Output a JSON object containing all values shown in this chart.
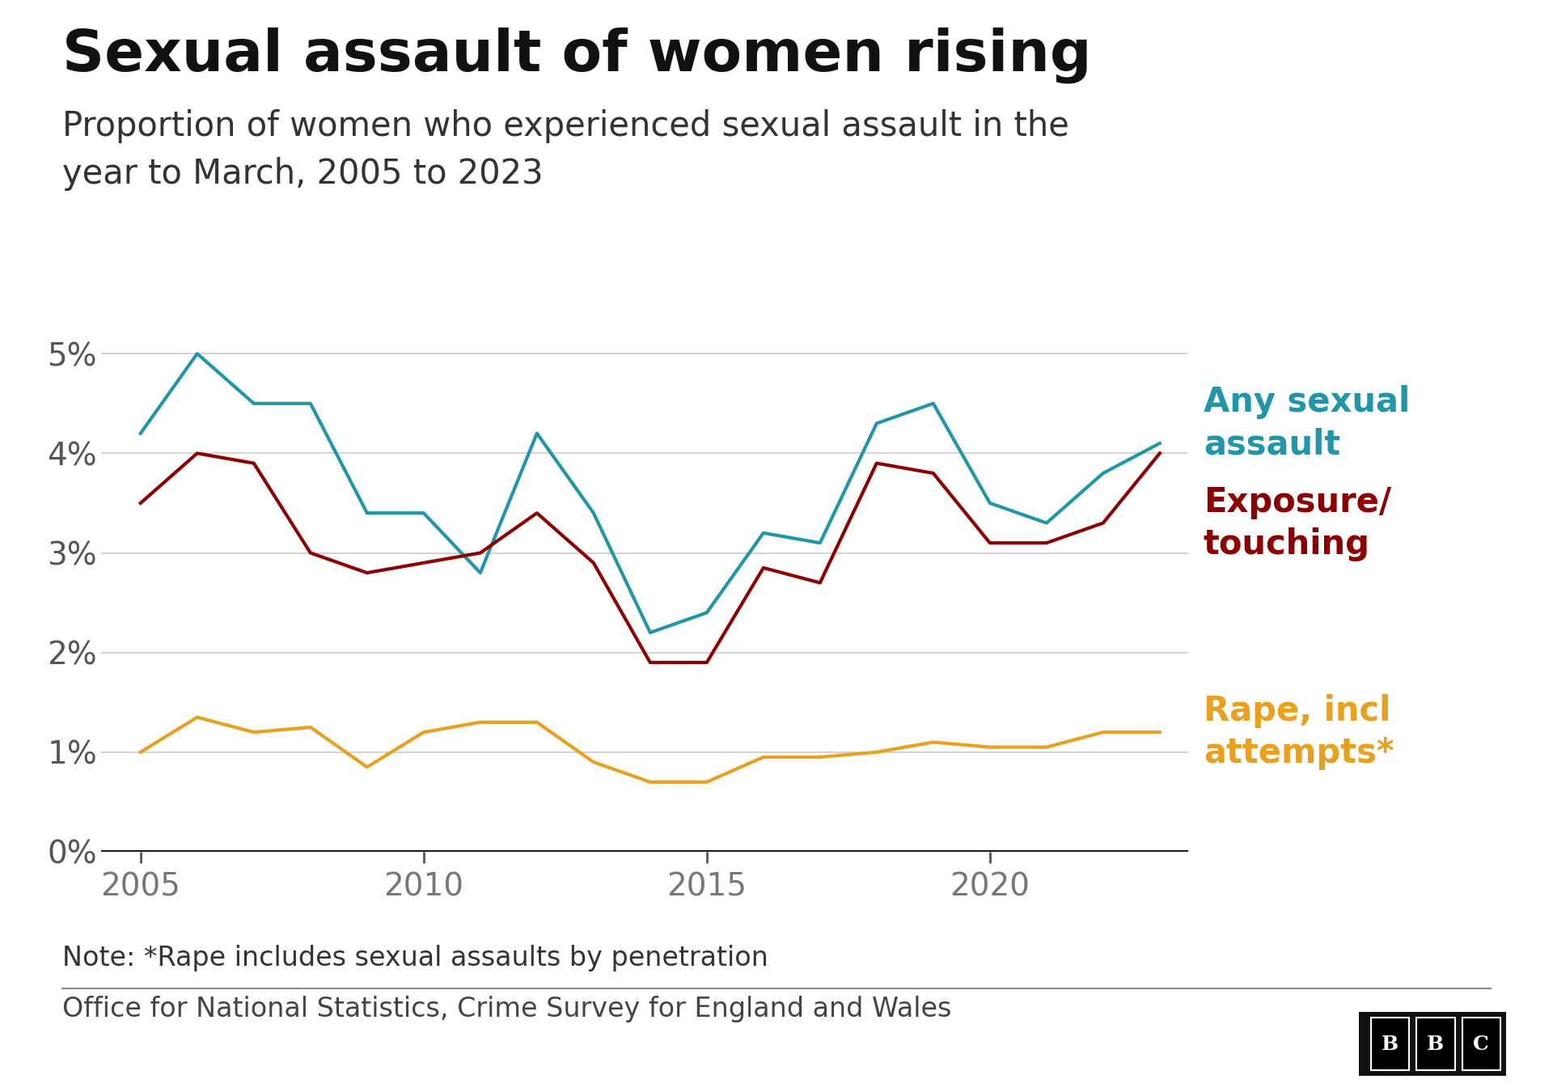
{
  "title": "Sexual assault of women rising",
  "subtitle": "Proportion of women who experienced sexual assault in the\nyear to March, 2005 to 2023",
  "note": "Note: *Rape includes sexual assaults by penetration",
  "source": "Office for National Statistics, Crime Survey for England and Wales",
  "years": [
    2005,
    2006,
    2007,
    2008,
    2009,
    2010,
    2011,
    2012,
    2013,
    2014,
    2015,
    2016,
    2017,
    2018,
    2019,
    2020,
    2021,
    2022,
    2023
  ],
  "any_sexual_assault": [
    4.2,
    5.0,
    4.5,
    4.5,
    3.4,
    3.4,
    2.8,
    4.2,
    3.4,
    2.2,
    2.4,
    3.2,
    3.1,
    4.3,
    4.5,
    3.5,
    3.3,
    3.8,
    4.1
  ],
  "exposure_touching": [
    3.5,
    4.0,
    3.9,
    3.0,
    2.8,
    2.9,
    3.0,
    3.4,
    2.9,
    1.9,
    1.9,
    2.85,
    2.7,
    3.9,
    3.8,
    3.1,
    3.1,
    3.3,
    4.0
  ],
  "rape_attempts": [
    1.0,
    1.35,
    1.2,
    1.25,
    0.85,
    1.2,
    1.3,
    1.3,
    0.9,
    0.7,
    0.7,
    0.95,
    0.95,
    1.0,
    1.1,
    1.05,
    1.05,
    1.2,
    1.2
  ],
  "color_any": "#2196A8",
  "color_exposure": "#8B0000",
  "color_rape": "#E8A020",
  "background_color": "#ffffff",
  "ylim": [
    0,
    0.057
  ],
  "yticks": [
    0,
    0.01,
    0.02,
    0.03,
    0.04,
    0.05
  ],
  "xticks": [
    2005,
    2010,
    2015,
    2020
  ],
  "title_fontsize": 52,
  "subtitle_fontsize": 30,
  "label_fontsize": 30,
  "tick_fontsize": 28,
  "note_fontsize": 24,
  "source_fontsize": 24,
  "line_width": 3.0
}
